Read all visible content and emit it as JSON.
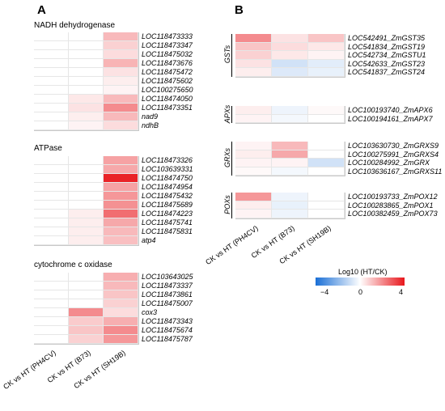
{
  "panels": {
    "A": {
      "letter": "A",
      "sections": [
        {
          "title": "NADH dehydrogenase",
          "rows": [
            {
              "gene": "LOC118473333",
              "values": [
                0,
                0,
                1.2
              ]
            },
            {
              "gene": "LOC118473347",
              "values": [
                0,
                0,
                0.8
              ]
            },
            {
              "gene": "LOC118475032",
              "values": [
                0,
                0,
                0.6
              ]
            },
            {
              "gene": "LOC118473676",
              "values": [
                0,
                0,
                1.3
              ]
            },
            {
              "gene": "LOC118475472",
              "values": [
                0,
                0,
                0.5
              ]
            },
            {
              "gene": "LOC118475602",
              "values": [
                0,
                0,
                0.3
              ]
            },
            {
              "gene": "LOC100275650",
              "values": [
                0,
                0,
                0.2
              ]
            },
            {
              "gene": "LOC118474050",
              "values": [
                0,
                0.4,
                1.2
              ]
            },
            {
              "gene": "LOC118473351",
              "values": [
                0,
                0.5,
                2.0
              ]
            },
            {
              "gene": "nad9",
              "values": [
                0,
                0.3,
                1.2
              ]
            },
            {
              "gene": "ndhB",
              "values": [
                0,
                0.2,
                0.6
              ]
            }
          ]
        },
        {
          "title": "ATPase",
          "rows": [
            {
              "gene": "LOC118473326",
              "values": [
                0,
                0,
                1.6
              ]
            },
            {
              "gene": "LOC103639331",
              "values": [
                0,
                0,
                1.5
              ]
            },
            {
              "gene": "LOC118474750",
              "values": [
                0,
                0,
                3.8
              ]
            },
            {
              "gene": "LOC118474954",
              "values": [
                0,
                0,
                1.6
              ]
            },
            {
              "gene": "LOC118475432",
              "values": [
                0,
                0,
                1.8
              ]
            },
            {
              "gene": "LOC118475689",
              "values": [
                0,
                0,
                1.9
              ]
            },
            {
              "gene": "LOC118474223",
              "values": [
                0,
                0.3,
                2.5
              ]
            },
            {
              "gene": "LOC118475741",
              "values": [
                0,
                0.3,
                1.5
              ]
            },
            {
              "gene": "LOC118475831",
              "values": [
                0,
                0.3,
                1.2
              ]
            },
            {
              "gene": "atp4",
              "values": [
                0,
                0.3,
                1.1
              ]
            }
          ]
        },
        {
          "title": "cytochrome c oxidase",
          "rows": [
            {
              "gene": "LOC103643025",
              "values": [
                0,
                0,
                1.4
              ]
            },
            {
              "gene": "LOC118473337",
              "values": [
                0,
                0,
                1.2
              ]
            },
            {
              "gene": "LOC118473861",
              "values": [
                0,
                0,
                1.0
              ]
            },
            {
              "gene": "LOC118475007",
              "values": [
                0,
                0,
                0.8
              ]
            },
            {
              "gene": "cox3",
              "values": [
                0,
                2.0,
                0.6
              ]
            },
            {
              "gene": "LOC118473343",
              "values": [
                0,
                0.9,
                1.4
              ]
            },
            {
              "gene": "LOC118475674",
              "values": [
                0,
                1.0,
                2.0
              ]
            },
            {
              "gene": "LOC118475787",
              "values": [
                0,
                0.8,
                1.8
              ]
            }
          ]
        }
      ],
      "xlabels": [
        "CK vs HT (PH4CV)",
        "CK vs HT (B73)",
        "CK vs HT (SH19B)"
      ]
    },
    "B": {
      "letter": "B",
      "groups": [
        {
          "label": "GSTs",
          "rows": [
            {
              "gene": "LOC542491_ZmGST35",
              "values": [
                2.0,
                0.5,
                1.0
              ]
            },
            {
              "gene": "LOC541834_ZmGST19",
              "values": [
                1.0,
                0.6,
                0.4
              ]
            },
            {
              "gene": "LOC542734_ZmGSTU1",
              "values": [
                0.8,
                0.4,
                0.2
              ]
            },
            {
              "gene": "LOC542633_ZmGST23",
              "values": [
                0.5,
                -0.8,
                -0.5
              ]
            },
            {
              "gene": "LOC541837_ZmGST24",
              "values": [
                0.3,
                -0.6,
                -0.4
              ]
            }
          ]
        },
        {
          "label": "APXs",
          "rows": [
            {
              "gene": "LOC100193740_ZmAPX6",
              "values": [
                0.3,
                -0.3,
                0.1
              ]
            },
            {
              "gene": "LOC100194161_ZmAPX7",
              "values": [
                0.2,
                -0.2,
                0
              ]
            }
          ]
        },
        {
          "label": "GRXs",
          "rows": [
            {
              "gene": "LOC103630730_ZmGRXS9",
              "values": [
                0.2,
                1.2,
                0
              ]
            },
            {
              "gene": "LOC100275991_ZmGRXS4",
              "values": [
                0.3,
                1.5,
                0
              ]
            },
            {
              "gene": "LOC100284992_ZmGRX",
              "values": [
                0.2,
                0.2,
                -0.8
              ]
            },
            {
              "gene": "LOC103636167_ZmGRXS11",
              "values": [
                0.1,
                -0.2,
                0
              ]
            }
          ]
        },
        {
          "label": "POXs",
          "rows": [
            {
              "gene": "LOC100193733_ZmPOX12",
              "values": [
                1.8,
                -0.3,
                0
              ]
            },
            {
              "gene": "LOC100283865_ZmPOX1",
              "values": [
                0.3,
                -0.4,
                0
              ]
            },
            {
              "gene": "LOC100382459_ZmPOX73",
              "values": [
                0.2,
                -0.3,
                0
              ]
            }
          ]
        }
      ],
      "xlabels": [
        "CK vs HT (PH4CV)",
        "CK vs HT (B73)",
        "CK vs HT (SH19B)"
      ]
    }
  },
  "legend": {
    "title": "Log10 (HT/CK)",
    "ticks": [
      "−4",
      "0",
      "4"
    ],
    "min": -4,
    "max": 4,
    "colors": {
      "low": "#1a6fd6",
      "mid": "#ffffff",
      "high": "#e8171c"
    }
  },
  "chart_data": [
    {
      "type": "heatmap",
      "title": "",
      "columns": [
        "CK vs HT (PH4CV)",
        "CK vs HT (B73)",
        "CK vs HT (SH19B)"
      ],
      "rows": [
        "LOC118473333",
        "LOC118473347",
        "LOC118475032",
        "LOC118473676",
        "LOC118475472",
        "LOC118475602",
        "LOC100275650",
        "LOC118474050",
        "LOC118473351",
        "nad9",
        "ndhB",
        "LOC118473326",
        "LOC103639331",
        "LOC118474750",
        "LOC118474954",
        "LOC118475432",
        "LOC118475689",
        "LOC118474223",
        "LOC118475741",
        "LOC118475831",
        "atp4",
        "LOC103643025",
        "LOC118473337",
        "LOC118473861",
        "LOC118475007",
        "cox3",
        "LOC118473343",
        "LOC118475674",
        "LOC118475787"
      ],
      "value_range": [
        -4,
        4
      ]
    },
    {
      "type": "heatmap",
      "title": "",
      "columns": [
        "CK vs HT (PH4CV)",
        "CK vs HT (B73)",
        "CK vs HT (SH19B)"
      ],
      "rows": [
        "LOC542491_ZmGST35",
        "LOC541834_ZmGST19",
        "LOC542734_ZmGSTU1",
        "LOC542633_ZmGST23",
        "LOC541837_ZmGST24",
        "LOC100193740_ZmAPX6",
        "LOC100194161_ZmAPX7",
        "LOC103630730_ZmGRXS9",
        "LOC100275991_ZmGRXS4",
        "LOC100284992_ZmGRX",
        "LOC103636167_ZmGRXS11",
        "LOC100193733_ZmPOX12",
        "LOC100283865_ZmPOX1",
        "LOC100382459_ZmPOX73"
      ],
      "value_range": [
        -4,
        4
      ]
    }
  ]
}
